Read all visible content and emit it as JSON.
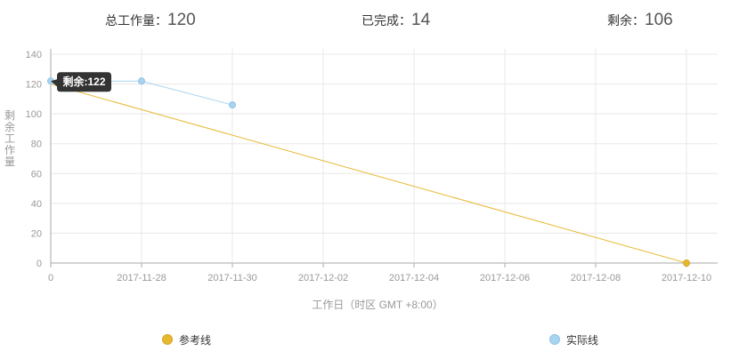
{
  "summary": {
    "total_label": "总工作量：",
    "total_value": "120",
    "done_label": "已完成：",
    "done_value": "14",
    "remain_label": "剩余：",
    "remain_value": "106"
  },
  "chart_data": {
    "type": "line",
    "xlabel": "工作日（时区 GMT +8:00）",
    "ylabel": "剩余工作量",
    "ylim": [
      0,
      140
    ],
    "yticks": [
      0,
      20,
      40,
      60,
      80,
      100,
      120,
      140
    ],
    "xticks": [
      "0",
      "2017-11-28",
      "2017-11-30",
      "2017-12-02",
      "2017-12-04",
      "2017-12-06",
      "2017-12-08",
      "2017-12-10"
    ],
    "grid": true,
    "legend_position": "bottom",
    "series": [
      {
        "name": "参考线",
        "color": "#e6b82e",
        "points": [
          {
            "x": "0",
            "y": 120
          },
          {
            "x": "2017-12-10",
            "y": 0
          }
        ]
      },
      {
        "name": "实际线",
        "color": "#a9d4ef",
        "points": [
          {
            "x": "0",
            "y": 122
          },
          {
            "x": "2017-11-28",
            "y": 122
          },
          {
            "x": "2017-11-30",
            "y": 106
          }
        ]
      }
    ],
    "tooltip": {
      "label": "剩余",
      "value": 122,
      "text": "剩余:122"
    }
  }
}
